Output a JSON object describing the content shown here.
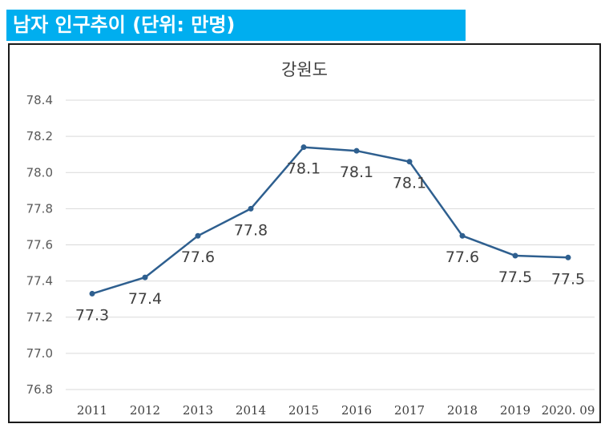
{
  "banner": {
    "title": "남자 인구추이 (단위: 만명)"
  },
  "chart_data": {
    "type": "line",
    "title": "강원도",
    "xlabel": "",
    "ylabel": "",
    "categories": [
      "2011",
      "2012",
      "2013",
      "2014",
      "2015",
      "2016",
      "2017",
      "2018",
      "2019",
      "2020. 09"
    ],
    "series": [
      {
        "name": "남자 인구",
        "values": [
          77.33,
          77.42,
          77.65,
          77.8,
          78.14,
          78.12,
          78.06,
          77.65,
          77.54,
          77.53
        ],
        "labels": [
          "77.3",
          "77.4",
          "77.6",
          "77.8",
          "78.1",
          "78.1",
          "78.1",
          "77.6",
          "77.5",
          "77.5"
        ],
        "color": "#2e5f8f"
      }
    ],
    "ylim": [
      76.8,
      78.4
    ],
    "yticks": [
      "76.8",
      "77.0",
      "77.2",
      "77.4",
      "77.6",
      "77.8",
      "78.0",
      "78.2",
      "78.4"
    ],
    "grid": true
  }
}
